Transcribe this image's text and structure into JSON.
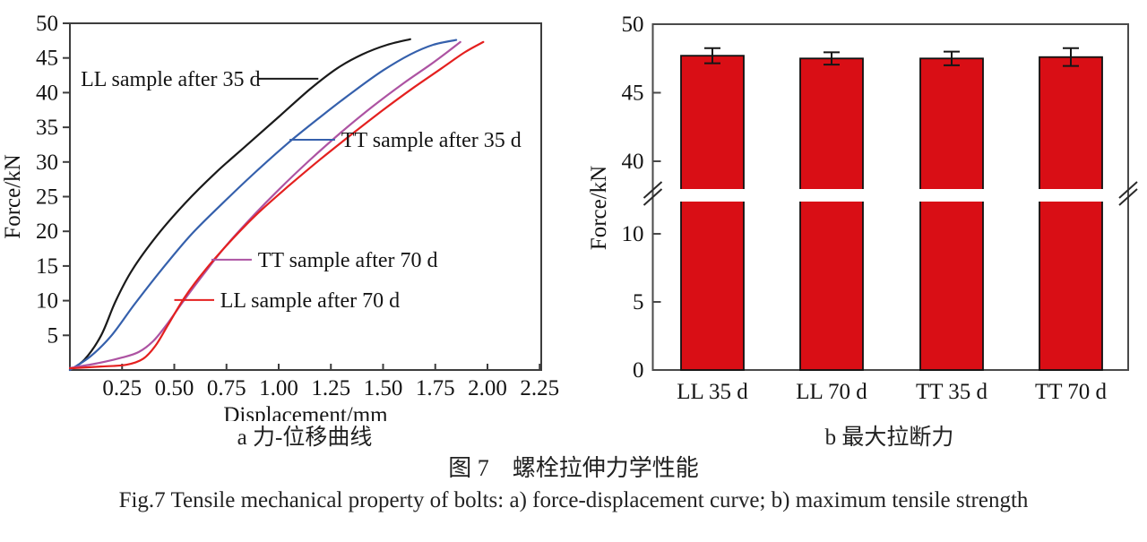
{
  "figure": {
    "caption_a": "a 力-位移曲线",
    "caption_b": "b 最大拉断力",
    "title_cn": "图 7　螺栓拉伸力学性能",
    "caption_en": "Fig.7 Tensile mechanical property of bolts: a) force-displacement curve; b) maximum tensile strength"
  },
  "chart_data": [
    {
      "id": "force-displacement-curve",
      "type": "line",
      "xlabel": "Displacement/mm",
      "ylabel": "Force/kN",
      "xlim": [
        0,
        2.3
      ],
      "ylim": [
        0,
        50
      ],
      "xtick_labels": [
        "0.25",
        "0.50",
        "0.75",
        "1.00",
        "1.25",
        "1.50",
        "1.75",
        "2.00",
        "2.25"
      ],
      "xtick_values": [
        0.25,
        0.5,
        0.75,
        1.0,
        1.25,
        1.5,
        1.75,
        2.0,
        2.25
      ],
      "ytick_values": [
        5,
        10,
        15,
        20,
        25,
        30,
        35,
        40,
        45,
        50
      ],
      "grid": false,
      "series": [
        {
          "name": "LL sample after 35 d",
          "color": "#1a1a1a",
          "points": [
            [
              0,
              0
            ],
            [
              0.07,
              1.5
            ],
            [
              0.15,
              5
            ],
            [
              0.22,
              10
            ],
            [
              0.3,
              14.5
            ],
            [
              0.42,
              19.5
            ],
            [
              0.55,
              24
            ],
            [
              0.7,
              28.5
            ],
            [
              0.85,
              32.5
            ],
            [
              1.0,
              36.5
            ],
            [
              1.15,
              40.5
            ],
            [
              1.28,
              43.5
            ],
            [
              1.4,
              45.5
            ],
            [
              1.52,
              46.9
            ],
            [
              1.63,
              47.7
            ]
          ]
        },
        {
          "name": "TT sample after 35 d",
          "color": "#3560ac",
          "points": [
            [
              0,
              0
            ],
            [
              0.1,
              2
            ],
            [
              0.2,
              5
            ],
            [
              0.31,
              9.5
            ],
            [
              0.44,
              14.5
            ],
            [
              0.58,
              19.5
            ],
            [
              0.73,
              24
            ],
            [
              0.88,
              28.3
            ],
            [
              1.04,
              32.6
            ],
            [
              1.2,
              36.5
            ],
            [
              1.36,
              40.2
            ],
            [
              1.5,
              43.2
            ],
            [
              1.63,
              45.5
            ],
            [
              1.74,
              46.9
            ],
            [
              1.85,
              47.6
            ]
          ]
        },
        {
          "name": "TT sample after 70 d",
          "color": "#ad53a2",
          "points": [
            [
              0,
              0.3
            ],
            [
              0.12,
              0.9
            ],
            [
              0.25,
              1.8
            ],
            [
              0.33,
              2.6
            ],
            [
              0.4,
              4.2
            ],
            [
              0.47,
              6.8
            ],
            [
              0.55,
              10.2
            ],
            [
              0.65,
              14.2
            ],
            [
              0.75,
              18
            ],
            [
              0.88,
              22.3
            ],
            [
              1.0,
              26
            ],
            [
              1.15,
              30.3
            ],
            [
              1.3,
              34.3
            ],
            [
              1.45,
              38
            ],
            [
              1.6,
              41.4
            ],
            [
              1.72,
              43.9
            ],
            [
              1.81,
              45.9
            ],
            [
              1.87,
              47.3
            ]
          ]
        },
        {
          "name": "LL sample after 70 d",
          "color": "#e4201f",
          "points": [
            [
              0,
              0.25
            ],
            [
              0.15,
              0.5
            ],
            [
              0.27,
              0.75
            ],
            [
              0.35,
              1.6
            ],
            [
              0.41,
              3.5
            ],
            [
              0.47,
              6.5
            ],
            [
              0.55,
              10.5
            ],
            [
              0.65,
              14.5
            ],
            [
              0.77,
              18.6
            ],
            [
              0.9,
              22.6
            ],
            [
              1.05,
              26.6
            ],
            [
              1.2,
              30.4
            ],
            [
              1.35,
              34
            ],
            [
              1.5,
              37.5
            ],
            [
              1.65,
              40.8
            ],
            [
              1.78,
              43.5
            ],
            [
              1.89,
              45.8
            ],
            [
              1.98,
              47.3
            ]
          ]
        }
      ],
      "annotations": [
        {
          "text": "LL sample after 35 d",
          "leader_color": "#1a1a1a",
          "text_x": 0.052,
          "text_y": 42.0,
          "leader_x1": 0.9,
          "leader_x2": 1.19,
          "leader_y": 42.0
        },
        {
          "text": "TT sample after 35 d",
          "leader_color": "#3560ac",
          "text_x": 1.3,
          "text_y": 33.2,
          "leader_x1": 1.052,
          "leader_x2": 1.27,
          "leader_y": 33.2
        },
        {
          "text": "TT sample after 70 d",
          "leader_color": "#ad53a2",
          "text_x": 0.9,
          "text_y": 15.9,
          "leader_x1": 0.678,
          "leader_x2": 0.871,
          "leader_y": 15.9
        },
        {
          "text": "LL sample after 70 d",
          "leader_color": "#e4201f",
          "text_x": 0.72,
          "text_y": 10.1,
          "leader_x1": 0.5,
          "leader_x2": 0.691,
          "leader_y": 10.1
        }
      ]
    },
    {
      "id": "maximum-tensile-force",
      "type": "bar",
      "categories": [
        "LL 35 d",
        "LL 70 d",
        "TT 35 d",
        "TT 70 d"
      ],
      "values": [
        47.7,
        47.5,
        47.5,
        47.6
      ],
      "errors": [
        0.55,
        0.45,
        0.5,
        0.65
      ],
      "ylabel": "Force/kN",
      "ylim": [
        0,
        50
      ],
      "bar_color": "#d90e15",
      "bar_edge_color": "#111111",
      "axis_break": {
        "lower_max": 12.5,
        "upper_min": 38
      },
      "yticks_lower": [
        0,
        5,
        10
      ],
      "yticks_upper": [
        40,
        45,
        50
      ],
      "grid": false,
      "legend": "none"
    }
  ]
}
